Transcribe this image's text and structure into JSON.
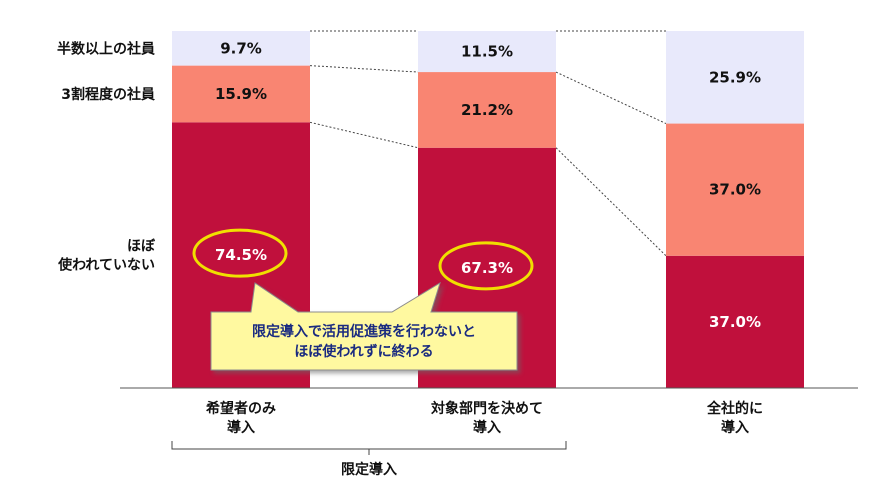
{
  "chart_data": {
    "type": "bar",
    "stacked": true,
    "stack_percent": true,
    "categories": [
      [
        "希望者のみ",
        "導入"
      ],
      [
        "対象部門を決めて",
        "導入"
      ],
      [
        "全社的に",
        "導入"
      ]
    ],
    "series": [
      {
        "name": [
          "ほぼ",
          "使われていない"
        ],
        "values": [
          74.5,
          67.3,
          37.0
        ],
        "value_labels": [
          "74.5%",
          "67.3%",
          "37.0%"
        ],
        "color": "#c0103c",
        "label_color": "#ffffff"
      },
      {
        "name": [
          "3割程度の社員"
        ],
        "values": [
          15.9,
          21.2,
          37.0
        ],
        "value_labels": [
          "15.9%",
          "21.2%",
          "37.0%"
        ],
        "color": "#f98572",
        "label_color": "#111111"
      },
      {
        "name": [
          "半数以上の社員"
        ],
        "values": [
          9.7,
          11.5,
          25.9
        ],
        "value_labels": [
          "9.7%",
          "11.5%",
          "25.9%"
        ],
        "color": "#e8e9fb",
        "label_color": "#111111"
      }
    ],
    "ylim": [
      0,
      100
    ],
    "grid": false,
    "legend": "left",
    "group_annotation": {
      "label": "限定導入",
      "categories": [
        0,
        1
      ]
    },
    "callout": {
      "text": [
        "限定導入で活用促進策を行わないと",
        "ほぼ使われずに終わる"
      ],
      "highlighted_values": [
        "74.5%",
        "67.3%"
      ]
    },
    "colors": {
      "highlight_ellipse": "#f0e000",
      "callout_fill": "#fff9a0",
      "callout_border": "#8c8c8c",
      "callout_text": "#1a2b80"
    }
  }
}
